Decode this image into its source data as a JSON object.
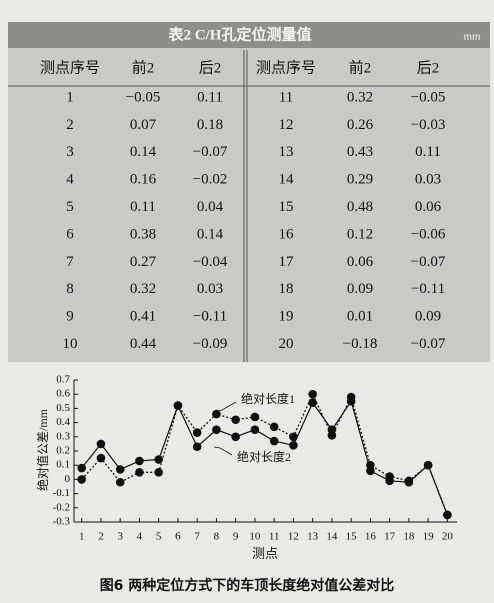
{
  "table": {
    "title": "表2  C/H孔定位测量值",
    "unit": "mm",
    "header": [
      "测点序号",
      "前2",
      "后2",
      "测点序号",
      "前2",
      "后2"
    ],
    "rows": [
      [
        "1",
        "−0.05",
        "0.11",
        "11",
        "0.32",
        "−0.05"
      ],
      [
        "2",
        "0.07",
        "0.18",
        "12",
        "0.26",
        "−0.03"
      ],
      [
        "3",
        "0.14",
        "−0.07",
        "13",
        "0.43",
        "0.11"
      ],
      [
        "4",
        "0.16",
        "−0.02",
        "14",
        "0.29",
        "0.03"
      ],
      [
        "5",
        "0.11",
        "0.04",
        "15",
        "0.48",
        "0.06"
      ],
      [
        "6",
        "0.38",
        "0.14",
        "16",
        "0.12",
        "−0.06"
      ],
      [
        "7",
        "0.27",
        "−0.04",
        "17",
        "0.06",
        "−0.07"
      ],
      [
        "8",
        "0.32",
        "0.03",
        "18",
        "0.09",
        "−0.11"
      ],
      [
        "9",
        "0.41",
        "−0.11",
        "19",
        "0.01",
        "0.09"
      ],
      [
        "10",
        "0.44",
        "−0.09",
        "20",
        "−0.18",
        "−0.07"
      ]
    ]
  },
  "chart_data": {
    "type": "line",
    "xlabel": "测点",
    "ylabel": "绝对值公差/mm",
    "x": [
      1,
      2,
      3,
      4,
      5,
      6,
      7,
      8,
      9,
      10,
      11,
      12,
      13,
      14,
      15,
      16,
      17,
      18,
      19,
      20
    ],
    "xlim": [
      0.6,
      20.5
    ],
    "xticks": [
      1,
      2,
      3,
      4,
      5,
      6,
      7,
      8,
      9,
      10,
      11,
      12,
      13,
      14,
      15,
      16,
      17,
      18,
      19,
      20
    ],
    "ylim": [
      -0.3,
      0.7
    ],
    "yticks": [
      -0.3,
      -0.2,
      -0.1,
      0,
      0.1,
      0.2,
      0.3,
      0.4,
      0.5,
      0.6,
      0.7
    ],
    "series": [
      {
        "name": "绝对长度1",
        "color": "#111111",
        "dash": "dotted",
        "values": [
          0.0,
          0.15,
          -0.02,
          0.05,
          0.05,
          0.52,
          0.33,
          0.46,
          0.42,
          0.44,
          0.37,
          0.3,
          0.6,
          0.31,
          0.58,
          0.1,
          0.02,
          -0.01,
          0.1,
          -0.25
        ]
      },
      {
        "name": "绝对长度2",
        "color": "#111111",
        "dash": "solid",
        "values": [
          0.08,
          0.25,
          0.07,
          0.13,
          0.14,
          0.52,
          0.23,
          0.35,
          0.3,
          0.35,
          0.27,
          0.24,
          0.54,
          0.35,
          0.55,
          0.06,
          -0.01,
          -0.02,
          0.1,
          -0.25
        ]
      }
    ]
  },
  "caption": "图6   两种定位方式下的车顶长度绝对值公差对比"
}
